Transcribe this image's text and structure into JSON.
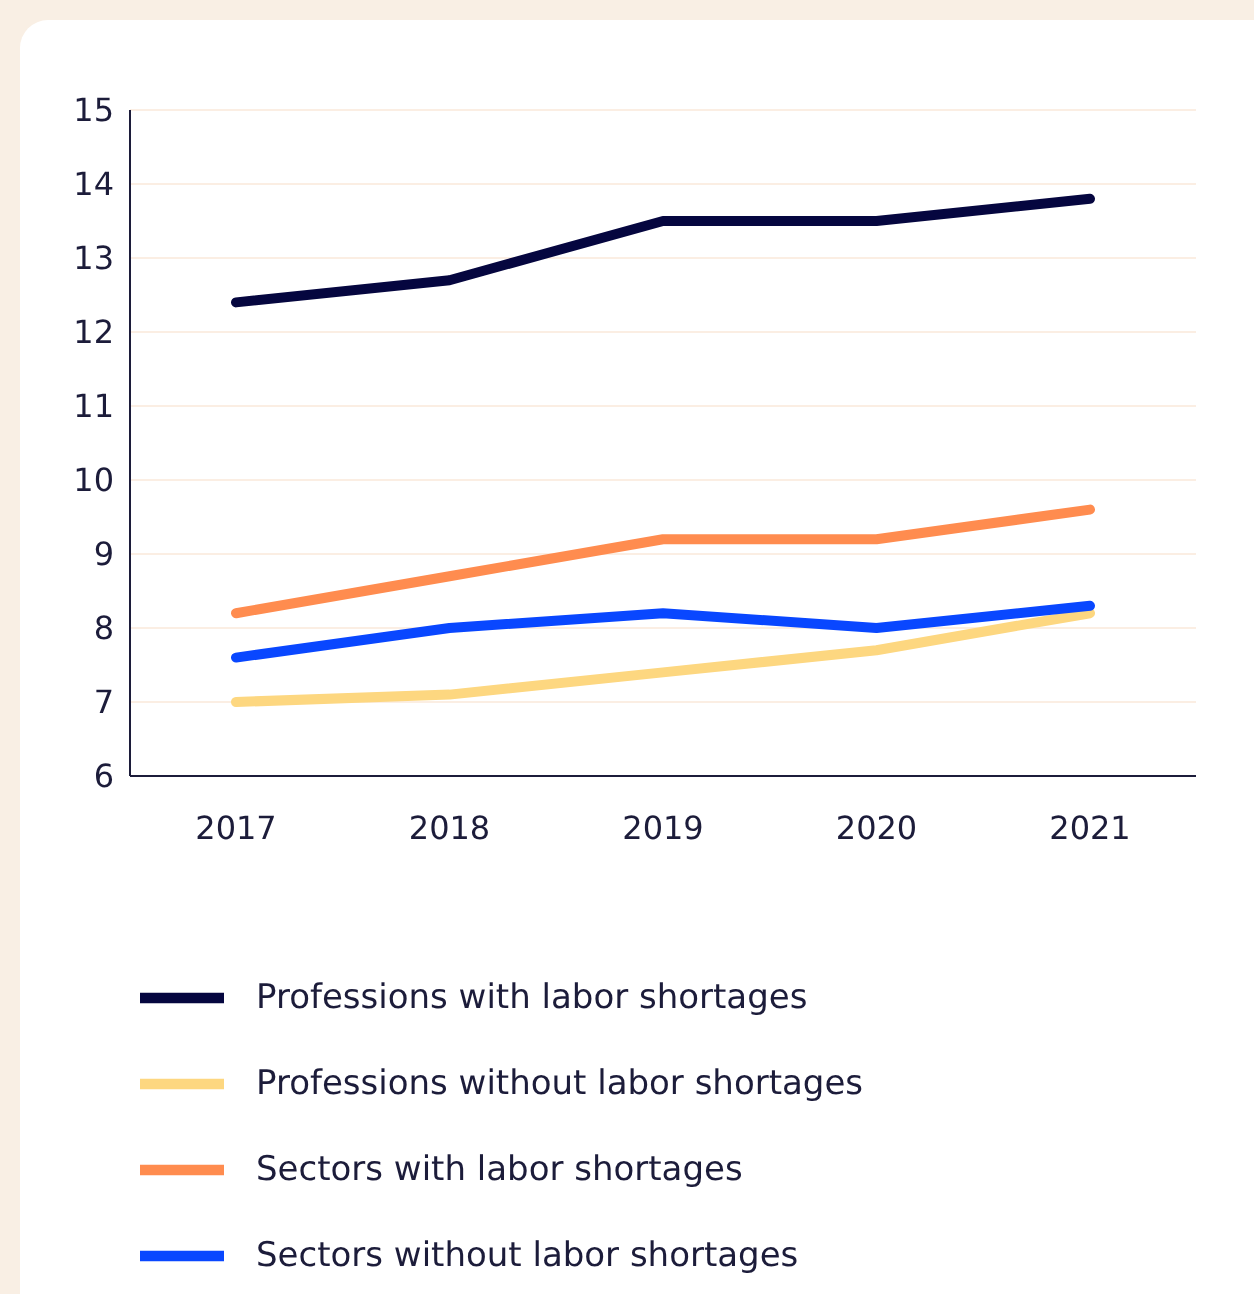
{
  "chart_data": {
    "type": "line",
    "categories": [
      "2017",
      "2018",
      "2019",
      "2020",
      "2021"
    ],
    "series": [
      {
        "name": "Professions with labor shortages",
        "color": "#05063f",
        "values": [
          12.4,
          12.7,
          13.5,
          13.5,
          13.8
        ]
      },
      {
        "name": "Professions without labor shortages",
        "color": "#fdd780",
        "values": [
          7.0,
          7.1,
          7.4,
          7.7,
          8.2
        ]
      },
      {
        "name": "Sectors with labor shortages",
        "color": "#ff8c4f",
        "values": [
          8.2,
          8.7,
          9.2,
          9.2,
          9.6
        ]
      },
      {
        "name": "Sectors without labor shortages",
        "color": "#0947ff",
        "values": [
          7.6,
          8.0,
          8.2,
          8.0,
          8.3
        ]
      }
    ],
    "ylim": [
      6,
      15
    ],
    "yticks": [
      6,
      7,
      8,
      9,
      10,
      11,
      12,
      13,
      14,
      15
    ],
    "grid": "y",
    "legend": "bottom",
    "marker": "none",
    "line_style": "solid"
  }
}
